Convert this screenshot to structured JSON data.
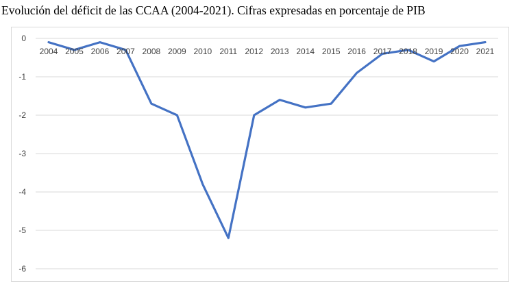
{
  "title": "Evolución del déficit de las CCAA (2004-2021). Cifras expresadas en porcentaje de PIB",
  "chart_data": {
    "type": "line",
    "title": "Evolución del déficit de las CCAA (2004-2021). Cifras expresadas en porcentaje de PIB",
    "xlabel": "",
    "ylabel": "",
    "categories": [
      "2004",
      "2005",
      "2006",
      "2007",
      "2008",
      "2009",
      "2010",
      "2011",
      "2012",
      "2013",
      "2014",
      "2015",
      "2016",
      "2017",
      "2018",
      "2019",
      "2020",
      "2021"
    ],
    "series": [
      {
        "values": [
          -0.1,
          -0.3,
          -0.1,
          -0.3,
          -1.7,
          -2.0,
          -3.8,
          -5.2,
          -2.0,
          -1.6,
          -1.8,
          -1.7,
          -0.9,
          -0.4,
          -0.3,
          -0.6,
          -0.2,
          -0.1
        ],
        "color": "#4472c4"
      }
    ],
    "yticks": [
      0,
      -1,
      -2,
      -3,
      -4,
      -5,
      -6
    ],
    "ylim": [
      -6,
      0
    ],
    "grid": true,
    "legend": "none",
    "colors": {
      "line": "#4472c4",
      "grid": "#d9d9d9",
      "tick_text": "#404040"
    }
  }
}
